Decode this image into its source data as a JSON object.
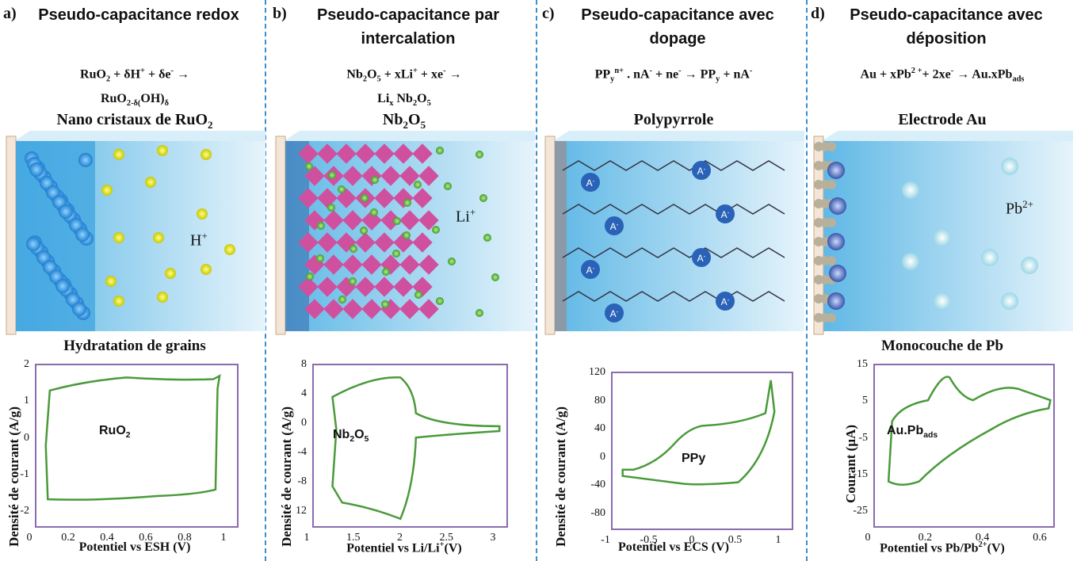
{
  "panels": [
    {
      "letter": "a)",
      "title": "Pseudo-capacitance redox",
      "equation": [
        [
          "RuO",
          {
            "sub": "2"
          },
          " + δH",
          {
            "sup": "+"
          },
          " + δe",
          {
            "sup": "-"
          },
          "  →"
        ],
        [
          "RuO",
          {
            "sub": "2-δ("
          },
          "OH)",
          {
            "sub": "δ"
          }
        ]
      ],
      "image_label": [
        "Nano cristaux de RuO",
        {
          "sub": "2"
        }
      ],
      "ion": [
        "H",
        {
          "sup": "+"
        }
      ],
      "caption": "Hydratation de grains",
      "chart": {
        "ylabel": "Densité de courant (A/g)",
        "xlabel": "Potentiel vs ESH (V)",
        "yticks": [
          2,
          1,
          0,
          -1,
          -2
        ],
        "xticks": [
          0,
          0.2,
          0.4,
          0.6,
          0.8,
          1
        ],
        "curve_label": [
          "RuO",
          {
            "sub": "2"
          }
        ]
      }
    },
    {
      "letter": "b)",
      "title": "Pseudo-capacitance par intercalation",
      "equation": [
        [
          "Nb",
          {
            "sub": "2"
          },
          "O",
          {
            "sub": "5"
          },
          " + xLi",
          {
            "sup": "+"
          },
          " + xe",
          {
            "sup": "-"
          },
          "  →"
        ],
        [
          "Li",
          {
            "sub": "x"
          },
          " Nb",
          {
            "sub": "2"
          },
          "O",
          {
            "sub": "5"
          }
        ]
      ],
      "image_label": [
        "Nb",
        {
          "sub": "2"
        },
        "O",
        {
          "sub": "5"
        }
      ],
      "ion": [
        "Li",
        {
          "sup": "+"
        }
      ],
      "chart": {
        "ylabel": "Densité de courant (A/g)",
        "xlabel": [
          "Potentiel vs Li/Li",
          {
            "sup": "+"
          },
          "(V)"
        ],
        "yticks": [
          8,
          4,
          0,
          -4,
          -8,
          12
        ],
        "xticks": [
          1,
          1.5,
          2,
          2.5,
          3
        ],
        "curve_label": [
          "Nb",
          {
            "sub": "2"
          },
          "O",
          {
            "sub": "5"
          }
        ]
      }
    },
    {
      "letter": "c)",
      "title": "Pseudo-capacitance avec dopage",
      "equation": [
        [
          "PP",
          {
            "sub": "y"
          },
          {
            "sup": "n+"
          },
          " . nA",
          {
            "sup": "-"
          },
          " + ne",
          {
            "sup": "-"
          },
          "  → PP",
          {
            "sub": "y"
          },
          " + nA",
          {
            "sup": "-"
          }
        ]
      ],
      "image_label": [
        "Polypyrrole"
      ],
      "ion": [
        "A",
        {
          "sup": "-"
        }
      ],
      "chart": {
        "ylabel": "Densité de courant (A/g)",
        "xlabel": "Potentiel vs ECS (V)",
        "yticks": [
          120,
          80,
          40,
          0,
          -40,
          -80
        ],
        "xticks": [
          -1,
          -0.5,
          0,
          0.5,
          1
        ],
        "curve_label": [
          "PPy"
        ]
      }
    },
    {
      "letter": "d)",
      "title": "Pseudo-capacitance avec déposition",
      "equation": [
        [
          "Au + xPb",
          {
            "sup": "2 +"
          },
          "+ 2xe",
          {
            "sup": "-"
          },
          "  → Au.xPb",
          {
            "sub": "ads"
          }
        ]
      ],
      "image_label": [
        "Electrode Au"
      ],
      "ion": [
        "Pb",
        {
          "sup": "2+"
        }
      ],
      "caption": "Monocouche de Pb",
      "chart": {
        "ylabel": "Courant (µA)",
        "xlabel": [
          "Potentiel vs Pb/Pb",
          {
            "sup": "2+"
          },
          "(V)"
        ],
        "yticks": [
          15,
          5,
          -5,
          -15,
          -25
        ],
        "xticks": [
          0,
          0.2,
          0.4,
          0.6
        ],
        "curve_label": [
          "Au.Pb",
          {
            "sub": "ads"
          }
        ]
      }
    }
  ]
}
